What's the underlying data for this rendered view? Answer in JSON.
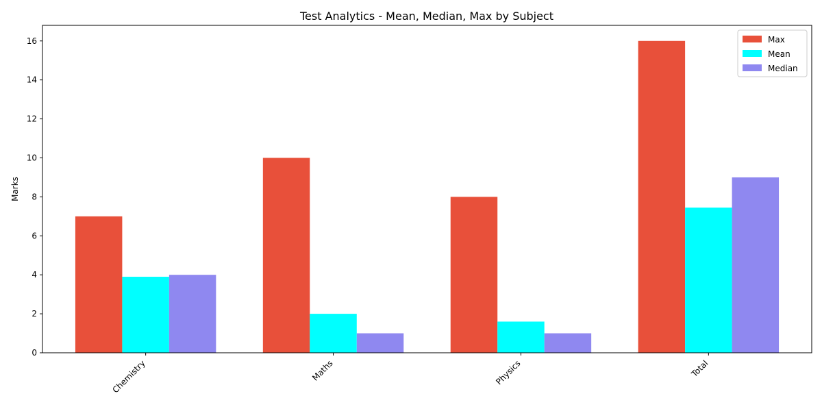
{
  "chart_data": {
    "type": "bar",
    "title": "Test Analytics - Mean, Median, Max by Subject",
    "xlabel": "",
    "ylabel": "Marks",
    "categories": [
      "Chemistry",
      "Maths",
      "Physics",
      "Total"
    ],
    "series": [
      {
        "name": "Max",
        "color": "#e8503a",
        "values": [
          7,
          10,
          8,
          16
        ]
      },
      {
        "name": "Mean",
        "color": "#00ffff",
        "values": [
          3.9,
          2.0,
          1.6,
          7.45
        ]
      },
      {
        "name": "Median",
        "color": "#8f88f0",
        "values": [
          4,
          1,
          1,
          9
        ]
      }
    ],
    "ylim": [
      0,
      16.8
    ],
    "yticks": [
      0,
      2,
      4,
      6,
      8,
      10,
      12,
      14,
      16
    ],
    "grid": false,
    "legend_position": "top-right"
  }
}
